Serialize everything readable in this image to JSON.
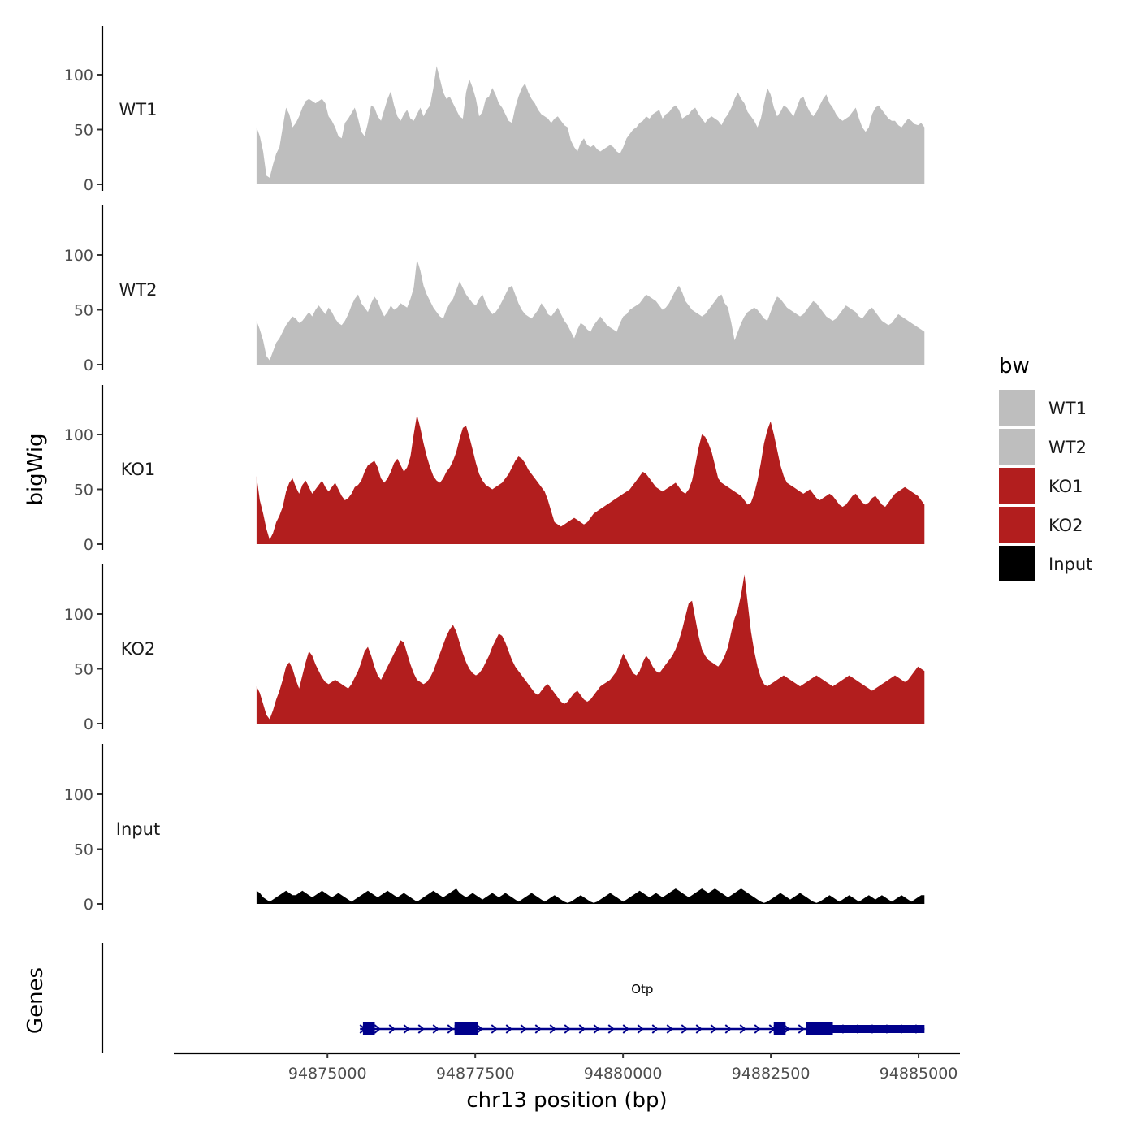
{
  "chart_data": {
    "type": "area",
    "title": "",
    "ylabel": "bigWig",
    "genes_label": "Genes",
    "xlabel": "chr13 position (bp)",
    "xlim": [
      94872400,
      94885700
    ],
    "data_xrange": [
      94873800,
      94885100
    ],
    "ylim": [
      0,
      145
    ],
    "yticks": [
      0,
      50,
      100
    ],
    "xticks": [
      94875000,
      94877500,
      94880000,
      94882500,
      94885000
    ],
    "xtick_labels": [
      "94875000",
      "94877500",
      "94880000",
      "94882500",
      "94885000"
    ],
    "legend": {
      "title": "bw",
      "entries": [
        {
          "label": "WT1",
          "color": "#bebebe"
        },
        {
          "label": "WT2",
          "color": "#bebebe"
        },
        {
          "label": "KO1",
          "color": "#b21e1e"
        },
        {
          "label": "KO2",
          "color": "#b21e1e"
        },
        {
          "label": "Input",
          "color": "#000000"
        }
      ]
    },
    "series": [
      {
        "name": "WT1",
        "color": "#bebebe",
        "values": [
          52,
          44,
          30,
          8,
          6,
          18,
          28,
          34,
          52,
          70,
          64,
          52,
          56,
          62,
          70,
          76,
          78,
          76,
          74,
          76,
          78,
          74,
          62,
          58,
          52,
          44,
          42,
          56,
          60,
          65,
          70,
          60,
          48,
          44,
          56,
          72,
          70,
          62,
          58,
          68,
          78,
          85,
          72,
          62,
          58,
          64,
          68,
          60,
          58,
          64,
          70,
          62,
          68,
          72,
          88,
          108,
          96,
          84,
          78,
          80,
          74,
          68,
          62,
          60,
          84,
          96,
          88,
          78,
          62,
          66,
          78,
          80,
          88,
          82,
          74,
          70,
          64,
          58,
          56,
          70,
          80,
          88,
          92,
          84,
          78,
          74,
          68,
          64,
          62,
          60,
          56,
          60,
          62,
          58,
          54,
          52,
          40,
          34,
          30,
          38,
          42,
          36,
          34,
          36,
          32,
          30,
          32,
          34,
          36,
          34,
          30,
          28,
          34,
          42,
          46,
          50,
          52,
          56,
          58,
          62,
          60,
          64,
          66,
          68,
          60,
          64,
          66,
          70,
          72,
          68,
          60,
          62,
          64,
          68,
          70,
          64,
          60,
          56,
          60,
          62,
          60,
          58,
          54,
          60,
          64,
          70,
          78,
          84,
          78,
          74,
          66,
          62,
          58,
          52,
          60,
          74,
          88,
          82,
          70,
          62,
          66,
          72,
          70,
          66,
          62,
          70,
          78,
          80,
          72,
          66,
          62,
          66,
          72,
          78,
          82,
          74,
          70,
          64,
          60,
          58,
          60,
          62,
          66,
          70,
          60,
          52,
          48,
          52,
          64,
          70,
          72,
          68,
          64,
          60,
          58,
          58,
          54,
          52,
          56,
          60,
          58,
          55,
          54,
          56,
          52
        ]
      },
      {
        "name": "WT2",
        "color": "#bebebe",
        "values": [
          40,
          32,
          22,
          8,
          4,
          12,
          20,
          24,
          30,
          36,
          40,
          44,
          42,
          38,
          40,
          44,
          48,
          44,
          50,
          54,
          50,
          46,
          52,
          48,
          42,
          38,
          36,
          40,
          46,
          54,
          60,
          64,
          56,
          52,
          48,
          56,
          62,
          58,
          50,
          44,
          48,
          54,
          50,
          52,
          56,
          54,
          52,
          60,
          70,
          96,
          86,
          72,
          64,
          58,
          52,
          48,
          44,
          42,
          50,
          56,
          60,
          68,
          76,
          70,
          64,
          60,
          56,
          54,
          60,
          64,
          56,
          50,
          46,
          48,
          52,
          58,
          64,
          70,
          72,
          64,
          56,
          50,
          46,
          44,
          42,
          46,
          50,
          56,
          52,
          46,
          44,
          48,
          52,
          46,
          40,
          36,
          30,
          24,
          32,
          38,
          36,
          32,
          30,
          36,
          40,
          44,
          40,
          36,
          34,
          32,
          30,
          38,
          44,
          46,
          50,
          52,
          54,
          56,
          60,
          64,
          62,
          60,
          58,
          54,
          50,
          52,
          56,
          62,
          68,
          72,
          66,
          58,
          54,
          50,
          48,
          46,
          44,
          46,
          50,
          54,
          58,
          62,
          64,
          56,
          52,
          38,
          22,
          30,
          38,
          44,
          48,
          50,
          52,
          50,
          46,
          42,
          40,
          48,
          56,
          62,
          60,
          56,
          52,
          50,
          48,
          46,
          44,
          46,
          50,
          54,
          58,
          56,
          52,
          48,
          44,
          42,
          40,
          42,
          46,
          50,
          54,
          52,
          50,
          48,
          44,
          42,
          46,
          50,
          52,
          48,
          44,
          40,
          38,
          36,
          38,
          42,
          46,
          44,
          42,
          40,
          38,
          36,
          34,
          32,
          30
        ]
      },
      {
        "name": "KO1",
        "color": "#b21e1e",
        "values": [
          62,
          40,
          28,
          14,
          4,
          10,
          20,
          26,
          34,
          48,
          56,
          60,
          52,
          46,
          54,
          58,
          52,
          46,
          50,
          54,
          58,
          52,
          48,
          52,
          56,
          50,
          44,
          40,
          42,
          46,
          52,
          54,
          58,
          66,
          72,
          74,
          76,
          70,
          60,
          56,
          60,
          66,
          74,
          78,
          72,
          66,
          70,
          80,
          100,
          118,
          106,
          92,
          80,
          70,
          62,
          58,
          56,
          60,
          66,
          70,
          76,
          84,
          96,
          106,
          108,
          98,
          86,
          74,
          64,
          58,
          54,
          52,
          50,
          52,
          54,
          56,
          60,
          64,
          70,
          76,
          80,
          78,
          74,
          68,
          64,
          60,
          56,
          52,
          48,
          40,
          30,
          20,
          18,
          16,
          18,
          20,
          22,
          24,
          22,
          20,
          18,
          20,
          24,
          28,
          30,
          32,
          34,
          36,
          38,
          40,
          42,
          44,
          46,
          48,
          50,
          54,
          58,
          62,
          66,
          64,
          60,
          56,
          52,
          50,
          48,
          50,
          52,
          54,
          56,
          52,
          48,
          46,
          50,
          58,
          72,
          88,
          100,
          98,
          92,
          84,
          72,
          60,
          56,
          54,
          52,
          50,
          48,
          46,
          44,
          40,
          36,
          38,
          46,
          58,
          74,
          92,
          104,
          112,
          100,
          86,
          72,
          62,
          56,
          54,
          52,
          50,
          48,
          46,
          48,
          50,
          46,
          42,
          40,
          42,
          44,
          46,
          44,
          40,
          36,
          34,
          36,
          40,
          44,
          46,
          42,
          38,
          36,
          38,
          42,
          44,
          40,
          36,
          34,
          38,
          42,
          46,
          48,
          50,
          52,
          50,
          48,
          46,
          44,
          40,
          36
        ]
      },
      {
        "name": "KO2",
        "color": "#b21e1e",
        "values": [
          34,
          28,
          18,
          8,
          4,
          12,
          22,
          30,
          40,
          52,
          56,
          50,
          40,
          32,
          44,
          56,
          66,
          62,
          54,
          48,
          42,
          38,
          36,
          38,
          40,
          38,
          36,
          34,
          32,
          36,
          42,
          48,
          56,
          66,
          70,
          62,
          52,
          44,
          40,
          46,
          52,
          58,
          64,
          70,
          76,
          74,
          64,
          54,
          46,
          40,
          38,
          36,
          38,
          42,
          48,
          56,
          64,
          72,
          80,
          86,
          90,
          84,
          74,
          64,
          56,
          50,
          46,
          44,
          46,
          50,
          56,
          62,
          70,
          76,
          82,
          80,
          74,
          66,
          58,
          52,
          48,
          44,
          40,
          36,
          32,
          28,
          26,
          30,
          34,
          36,
          32,
          28,
          24,
          20,
          18,
          20,
          24,
          28,
          30,
          26,
          22,
          20,
          22,
          26,
          30,
          34,
          36,
          38,
          40,
          44,
          48,
          56,
          64,
          58,
          52,
          46,
          44,
          48,
          56,
          62,
          58,
          52,
          48,
          46,
          50,
          54,
          58,
          62,
          68,
          76,
          86,
          98,
          110,
          112,
          96,
          80,
          68,
          62,
          58,
          56,
          54,
          52,
          56,
          62,
          70,
          84,
          96,
          104,
          118,
          136,
          110,
          84,
          66,
          52,
          42,
          36,
          34,
          36,
          38,
          40,
          42,
          44,
          42,
          40,
          38,
          36,
          34,
          36,
          38,
          40,
          42,
          44,
          42,
          40,
          38,
          36,
          34,
          36,
          38,
          40,
          42,
          44,
          42,
          40,
          38,
          36,
          34,
          32,
          30,
          32,
          34,
          36,
          38,
          40,
          42,
          44,
          42,
          40,
          38,
          40,
          44,
          48,
          52,
          50,
          48
        ]
      },
      {
        "name": "Input",
        "color": "#000000",
        "values": [
          12,
          10,
          6,
          4,
          2,
          4,
          6,
          8,
          10,
          12,
          10,
          8,
          8,
          10,
          12,
          10,
          8,
          6,
          8,
          10,
          12,
          10,
          8,
          6,
          8,
          10,
          8,
          6,
          4,
          2,
          4,
          6,
          8,
          10,
          12,
          10,
          8,
          6,
          8,
          10,
          12,
          10,
          8,
          6,
          8,
          10,
          8,
          6,
          4,
          2,
          4,
          6,
          8,
          10,
          12,
          10,
          8,
          6,
          8,
          10,
          12,
          14,
          10,
          8,
          6,
          8,
          10,
          8,
          6,
          4,
          6,
          8,
          10,
          8,
          6,
          8,
          10,
          8,
          6,
          4,
          2,
          4,
          6,
          8,
          10,
          8,
          6,
          4,
          2,
          4,
          6,
          8,
          6,
          4,
          2,
          1,
          2,
          4,
          6,
          8,
          6,
          4,
          2,
          1,
          2,
          4,
          6,
          8,
          10,
          8,
          6,
          4,
          2,
          4,
          6,
          8,
          10,
          12,
          10,
          8,
          6,
          8,
          10,
          8,
          6,
          8,
          10,
          12,
          14,
          12,
          10,
          8,
          6,
          8,
          10,
          12,
          14,
          12,
          10,
          12,
          14,
          12,
          10,
          8,
          6,
          8,
          10,
          12,
          14,
          12,
          10,
          8,
          6,
          4,
          2,
          1,
          2,
          4,
          6,
          8,
          10,
          8,
          6,
          4,
          6,
          8,
          10,
          8,
          6,
          4,
          2,
          1,
          2,
          4,
          6,
          8,
          6,
          4,
          2,
          4,
          6,
          8,
          6,
          4,
          2,
          4,
          6,
          8,
          6,
          4,
          6,
          8,
          6,
          4,
          2,
          4,
          6,
          8,
          6,
          4,
          2,
          4,
          6,
          8,
          8
        ]
      }
    ],
    "genes": [
      {
        "name": "Otp",
        "strand": "+",
        "start": 94875550,
        "end": 94885100,
        "exons": [
          [
            94875600,
            94875800
          ],
          [
            94877150,
            94877550
          ],
          [
            94882550,
            94882750
          ],
          [
            94883100,
            94885100
          ]
        ],
        "thick_exons": [
          [
            94875600,
            94875800
          ],
          [
            94877150,
            94877550
          ],
          [
            94882550,
            94882750
          ],
          [
            94883100,
            94883550
          ]
        ]
      }
    ]
  }
}
